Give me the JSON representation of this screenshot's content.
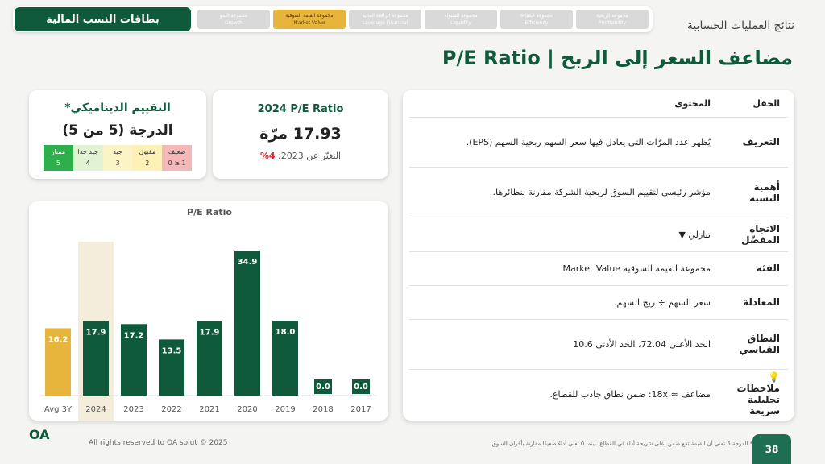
{
  "header": {
    "title": "بطاقات النسب المالية",
    "section": "نتائج العمليات الحسابية",
    "active_tab": "Market Value",
    "tabs": [
      {
        "ar": "مجموعة الربحية",
        "en": "Profitability"
      },
      {
        "ar": "مجموعة الكفاءة",
        "en": "Efficiency"
      },
      {
        "ar": "مجموعة السيولة",
        "en": "Liquidity"
      },
      {
        "ar": "مجموعة الرافعة المالية",
        "en": "Leverage Financial"
      },
      {
        "ar": "مجموعة القيمة السوقية",
        "en": "Market Value"
      },
      {
        "ar": "مجموعة النمو",
        "en": "Growth"
      }
    ]
  },
  "page_title": "مضاعف السعر إلى الربح | P/E Ratio",
  "kpi": {
    "title": "2024 P/E Ratio",
    "value": "17.93 مرّة",
    "change_label": "التغيّر عن 2023:",
    "change": "4%"
  },
  "rating": {
    "title": "التقييم الديناميكي*",
    "score": "الدرجة (5 من 5)",
    "levels": [
      {
        "name": "ضعيف",
        "range": "0 ≥ 1"
      },
      {
        "name": "مقبول",
        "range": "2"
      },
      {
        "name": "جيد",
        "range": "3"
      },
      {
        "name": "جيد جدا",
        "range": "4"
      },
      {
        "name": "ممتاز",
        "range": "5"
      }
    ]
  },
  "chart_data": {
    "type": "bar",
    "title": "P/E Ratio",
    "categories": [
      "Avg 3Y",
      "2024",
      "2023",
      "2022",
      "2021",
      "2020",
      "2019",
      "2018",
      "2017"
    ],
    "values": [
      16.2,
      17.9,
      17.2,
      13.5,
      17.9,
      34.9,
      18.0,
      0.0,
      0.0
    ],
    "value_labels": [
      "16.2",
      "17.9",
      "17.2",
      "13.5",
      "17.9",
      "34.9",
      "18.0",
      "0.0",
      "0.0"
    ],
    "colors": [
      "#e8b53c",
      "#0f5a3a",
      "#0f5a3a",
      "#0f5a3a",
      "#0f5a3a",
      "#0f5a3a",
      "#0f5a3a",
      "#0f5a3a",
      "#0f5a3a"
    ],
    "highlight": "2024"
  },
  "table": {
    "header": [
      "الحقل",
      "المحتوى"
    ],
    "rows": [
      [
        "التعريف",
        "يُظهر عدد المرّات التي يعادل فيها سعر السهم ربحية السهم (EPS)."
      ],
      [
        "أهمية النسبة",
        "مؤشر رئيسي لتقييم السوق لربحية الشركة مقارنة بنظائرها."
      ],
      [
        "الاتجاه المفضّل",
        "تنازلي ▼"
      ],
      [
        "الفئة",
        "مجموعة القيمة السوقية Market Value"
      ],
      [
        "المعادلة",
        "سعر السهم ÷ ربح السهم."
      ],
      [
        "النطاق القياسي",
        "الحد الأعلى 72.04، الحد الأدنى 10.6"
      ],
      [
        "💡 ملاحظات تحليلية سريعة",
        "مضاعف ≈ 18x: ضمن نطاق جاذب للقطاع."
      ]
    ]
  },
  "footer": {
    "logo": "OA",
    "copyright": "All rights reserved to OA solut © 2025",
    "note": "* الدرجة 5 تعني أن القيمة تقع ضمن أعلى شريحة أداء في القطاع، بينما 0 تعني أداءً ضعيفًا مقارنة بأقران السوق.",
    "page": "38"
  }
}
